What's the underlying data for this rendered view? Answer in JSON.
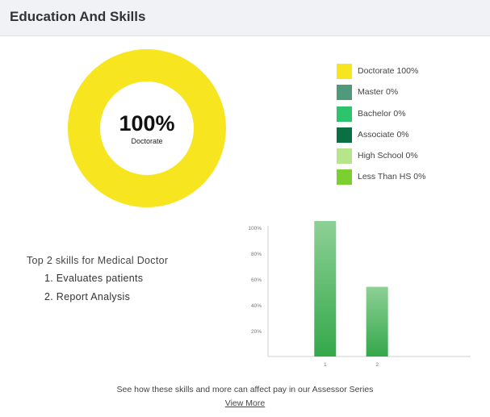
{
  "header": {
    "title": "Education And Skills"
  },
  "donut": {
    "center_value": "100%",
    "center_label": "Doctorate",
    "ring_color": "#f6e51f"
  },
  "legend": [
    {
      "label": "Doctorate 100%",
      "color": "#f6e51f"
    },
    {
      "label": "Master 0%",
      "color": "#4e9a7b"
    },
    {
      "label": "Bachelor 0%",
      "color": "#2ec46e"
    },
    {
      "label": "Associate 0%",
      "color": "#0a7044"
    },
    {
      "label": "High School 0%",
      "color": "#b6e58b"
    },
    {
      "label": "Less Than HS 0%",
      "color": "#7bcf2e"
    }
  ],
  "skills": {
    "title": "Top 2 skills for Medical Doctor",
    "items": [
      "1. Evaluates patients",
      "2. Report Analysis"
    ]
  },
  "chart_data": {
    "type": "bar",
    "categories": [
      "1",
      "2"
    ],
    "values": [
      105,
      54
    ],
    "ylim": [
      0,
      100
    ],
    "y_ticks": [
      "20%",
      "40%",
      "60%",
      "80%",
      "100%"
    ],
    "grid": false,
    "bar_color_top": "#8dd096",
    "bar_color_bottom": "#34a84a"
  },
  "footer": {
    "text": "See how these skills and more can affect pay in our Assessor Series",
    "link_label": "View More"
  }
}
